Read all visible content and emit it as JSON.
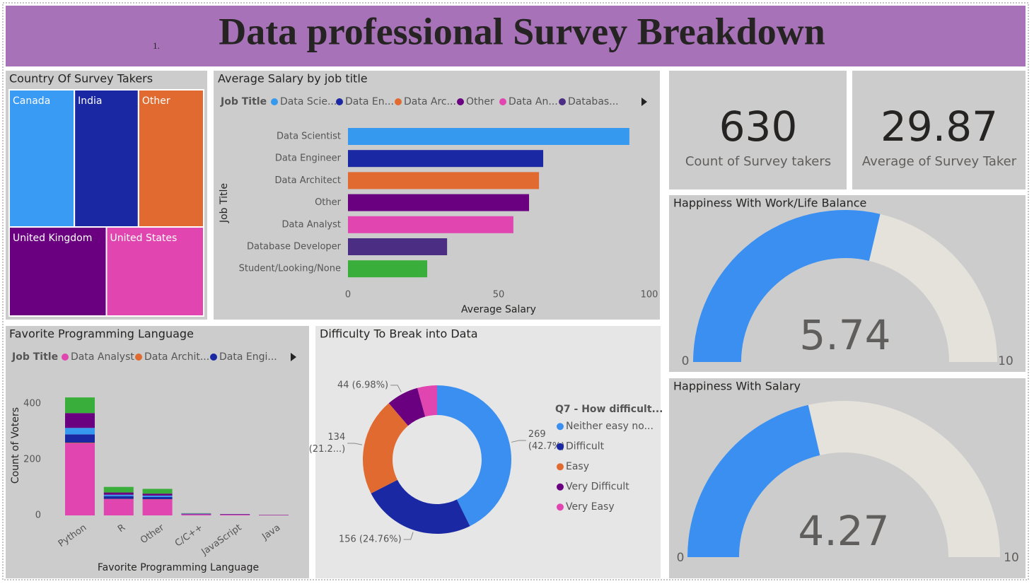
{
  "header": {
    "number": "1.",
    "title": "Data professional Survey Breakdown"
  },
  "chart_data": [
    {
      "type": "treemap",
      "title": "Country Of Survey Takers",
      "categories": [
        "Canada",
        "India",
        "Other",
        "United Kingdom",
        "United States"
      ],
      "values": [
        128,
        126,
        128,
        124,
        124
      ],
      "colors": [
        "#3a9bf5",
        "#1b28a3",
        "#e06a30",
        "#6a0080",
        "#e045b0"
      ]
    },
    {
      "type": "bar",
      "title": "Average Salary by job title",
      "legend_title": "Job Title",
      "legend_labels": [
        "Data Scie...",
        "Data En...",
        "Data Arc...",
        "Other",
        "Data An...",
        "Databas..."
      ],
      "categories": [
        "Data Scientist",
        "Data Engineer",
        "Data Architect",
        "Other",
        "Data Analyst",
        "Database Developer",
        "Student/Looking/None"
      ],
      "values": [
        93.4,
        64.8,
        63.4,
        60.1,
        54.9,
        32.9,
        26.3
      ],
      "colors": [
        "#3599f0",
        "#1b28a3",
        "#e06a30",
        "#6a0080",
        "#e045b0",
        "#4b2d83",
        "#3aae3a"
      ],
      "xlim": [
        0,
        100
      ],
      "xticks": [
        0,
        50,
        100
      ],
      "xlabel": "Average Salary",
      "ylabel": "Job Title"
    },
    {
      "type": "card",
      "value": 630,
      "label": "Count of Survey takers"
    },
    {
      "type": "card",
      "value": 29.87,
      "label": "Average of Survey Taker"
    },
    {
      "type": "gauge",
      "title": "Happiness With Work/Life Balance",
      "value": 5.74,
      "min": 0,
      "max": 10,
      "color": "#3a8ff0",
      "track_color": "#e5e2dc"
    },
    {
      "type": "gauge",
      "title": "Happiness With Salary",
      "value": 4.27,
      "min": 0,
      "max": 10,
      "color": "#3a8ff0",
      "track_color": "#e5e2dc"
    },
    {
      "type": "stacked_bar",
      "title": "Favorite Programming Language",
      "legend_title": "Job Title",
      "legend_labels": [
        "Data Analyst",
        "Data Archit...",
        "Data Engi..."
      ],
      "categories": [
        "Python",
        "R",
        "Other",
        "C/C++",
        "JavaScript",
        "Java"
      ],
      "series": [
        {
          "name": "Data Analyst",
          "color": "#e045b0",
          "values": [
            258,
            58,
            57,
            4,
            3,
            1
          ]
        },
        {
          "name": "Data Architect",
          "color": "#e06a30",
          "values": [
            2,
            1,
            1,
            0,
            0,
            0
          ]
        },
        {
          "name": "Data Engineer",
          "color": "#1b28a3",
          "values": [
            30,
            10,
            8,
            1,
            1,
            0
          ]
        },
        {
          "name": "Data Scientist",
          "color": "#3599f0",
          "values": [
            23,
            5,
            5,
            1,
            0,
            0
          ]
        },
        {
          "name": "Other",
          "color": "#6a0080",
          "values": [
            53,
            8,
            7,
            1,
            1,
            1
          ]
        },
        {
          "name": "Student/Looking/None",
          "color": "#3aae3a",
          "values": [
            56,
            20,
            17,
            1,
            0,
            0
          ]
        }
      ],
      "ylim": [
        0,
        440
      ],
      "yticks": [
        0,
        200,
        400
      ],
      "xlabel": "Favorite Programming Language",
      "ylabel": "Count of Voters"
    },
    {
      "type": "donut",
      "title": "Difficulty To Break into Data",
      "legend_title": "Q7 - How difficult...",
      "categories": [
        "Neither easy no...",
        "Difficult",
        "Easy",
        "Very Difficult",
        "Very Easy"
      ],
      "values": [
        269,
        156,
        134,
        44,
        27
      ],
      "value_labels": [
        [
          "269",
          "(42.7%)"
        ],
        [
          "156 (24.76%)"
        ],
        [
          "134",
          "(21.2...)"
        ],
        [
          "44 (6.98%)"
        ],
        null
      ],
      "colors": [
        "#3a8ff0",
        "#1b28a3",
        "#e06a30",
        "#6a0080",
        "#e045b0"
      ]
    }
  ]
}
